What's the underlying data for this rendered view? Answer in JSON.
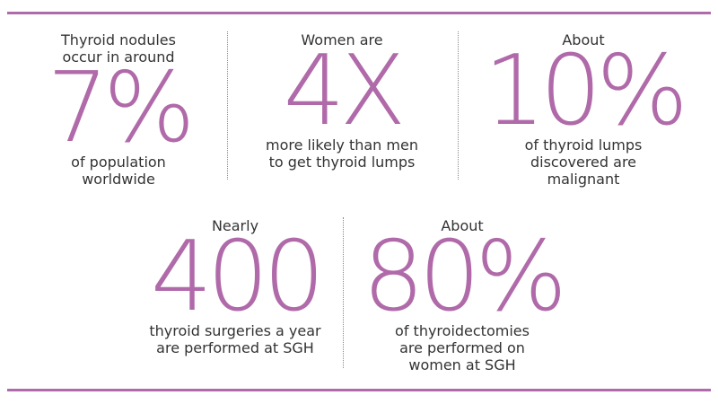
{
  "stats": [
    {
      "lead": [
        "Thyroid nodules",
        "occur in around"
      ],
      "figure": "7%",
      "tail": [
        "of population",
        "worldwide"
      ]
    },
    {
      "lead": [
        "Women are"
      ],
      "figure": "4X",
      "tail": [
        "more likely than men",
        "to get thyroid lumps"
      ]
    },
    {
      "lead": [
        "About"
      ],
      "figure": "10%",
      "tail": [
        "of thyroid lumps",
        "discovered are",
        "malignant"
      ]
    },
    {
      "lead": [
        "Nearly"
      ],
      "figure": "400",
      "tail": [
        "thyroid surgeries a year",
        "are performed at SGH"
      ]
    },
    {
      "lead": [
        "About"
      ],
      "figure": "80%",
      "tail": [
        "of thyroidectomies",
        "are performed on",
        "women at SGH"
      ]
    }
  ]
}
